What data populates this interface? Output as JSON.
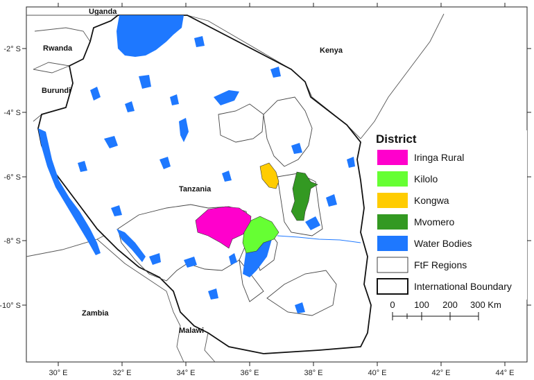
{
  "axes": {
    "x_ticks": [
      "30° E",
      "32° E",
      "34° E",
      "36° E",
      "38° E",
      "40° E",
      "42° E",
      "44° E"
    ],
    "y_ticks": [
      "-2° S",
      "-4° S",
      "-6° S",
      "-8° S",
      "-10° S"
    ]
  },
  "places": {
    "uganda": "Uganda",
    "rwanda": "Rwanda",
    "burundi": "Burundi",
    "kenya": "Kenya",
    "tanzania": "Tanzania",
    "zambia": "Zambia",
    "malawi": "Malawi"
  },
  "legend": {
    "title": "District",
    "items": [
      {
        "label": "Iringa Rural",
        "color": "#ff00cc"
      },
      {
        "label": "Kilolo",
        "color": "#66ff33"
      },
      {
        "label": "Kongwa",
        "color": "#ffcc00"
      },
      {
        "label": "Mvomero",
        "color": "#339922"
      },
      {
        "label": "Water Bodies",
        "color": "#1e78ff"
      },
      {
        "label": "FtF Regions",
        "color": "#ffffff"
      },
      {
        "label": "International Boundary",
        "color": "#ffffff"
      }
    ]
  },
  "scale_bar": {
    "labels": [
      "0",
      "100",
      "200",
      "300 Km"
    ]
  },
  "colors": {
    "water": "#1e78ff",
    "iringa_rural": "#ff00cc",
    "kilolo": "#66ff33",
    "kongwa": "#ffcc00",
    "mvomero": "#339922"
  }
}
